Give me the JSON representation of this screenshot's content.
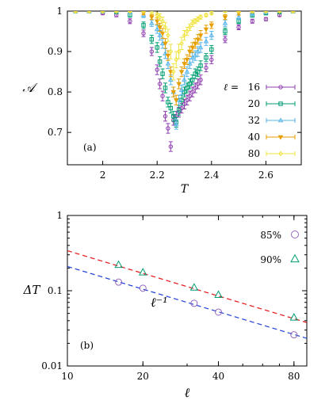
{
  "chart_data": [
    {
      "type": "scatter",
      "panel_label": "(a)",
      "xlabel": "T",
      "ylabel": "𝒜",
      "xlim": [
        1.87,
        2.73
      ],
      "ylim": [
        0.62,
        1.0
      ],
      "xticks": [
        2,
        2.2,
        2.4,
        2.6
      ],
      "xtick_labels": [
        "2",
        "2.2",
        "2.4",
        "2.6"
      ],
      "yticks": [
        0.7,
        0.8,
        0.9,
        1.0
      ],
      "ytick_labels": [
        "0.7",
        "0.8",
        "0.9",
        "1"
      ],
      "legend_title": "ℓ =",
      "legend_position": "right",
      "series": [
        {
          "name": "16",
          "color": "#8e3fb0",
          "marker": "circle",
          "x": [
            1.9,
            1.95,
            2.0,
            2.05,
            2.1,
            2.15,
            2.18,
            2.2,
            2.21,
            2.22,
            2.23,
            2.24,
            2.25,
            2.26,
            2.27,
            2.28,
            2.29,
            2.3,
            2.31,
            2.32,
            2.33,
            2.34,
            2.35,
            2.36,
            2.38,
            2.4,
            2.45,
            2.5,
            2.55,
            2.6,
            2.65,
            2.7
          ],
          "y": [
            1.0,
            1.0,
            0.995,
            0.99,
            0.975,
            0.945,
            0.9,
            0.855,
            0.82,
            0.79,
            0.74,
            0.71,
            0.665,
            0.73,
            0.74,
            0.75,
            0.76,
            0.77,
            0.78,
            0.79,
            0.8,
            0.81,
            0.82,
            0.83,
            0.86,
            0.88,
            0.93,
            0.96,
            0.975,
            0.98,
            0.99,
            1.0
          ],
          "err": [
            0.003,
            0.003,
            0.004,
            0.004,
            0.006,
            0.008,
            0.01,
            0.012,
            0.012,
            0.012,
            0.012,
            0.012,
            0.012,
            0.012,
            0.012,
            0.012,
            0.012,
            0.012,
            0.012,
            0.012,
            0.012,
            0.012,
            0.012,
            0.012,
            0.01,
            0.01,
            0.008,
            0.006,
            0.005,
            0.004,
            0.003,
            0.003
          ]
        },
        {
          "name": "20",
          "color": "#009e73",
          "marker": "square",
          "x": [
            1.9,
            1.95,
            2.0,
            2.05,
            2.1,
            2.15,
            2.18,
            2.2,
            2.21,
            2.22,
            2.23,
            2.24,
            2.25,
            2.26,
            2.27,
            2.28,
            2.29,
            2.3,
            2.31,
            2.32,
            2.33,
            2.34,
            2.35,
            2.36,
            2.38,
            2.4,
            2.45,
            2.5,
            2.55,
            2.6,
            2.65,
            2.7
          ],
          "y": [
            1.0,
            1.0,
            1.0,
            0.998,
            0.99,
            0.965,
            0.93,
            0.91,
            0.875,
            0.845,
            0.81,
            0.775,
            0.76,
            0.74,
            0.725,
            0.755,
            0.78,
            0.8,
            0.81,
            0.82,
            0.83,
            0.845,
            0.85,
            0.865,
            0.885,
            0.905,
            0.95,
            0.975,
            0.99,
            0.995,
            0.998,
            1.0
          ],
          "err": [
            0.003,
            0.003,
            0.003,
            0.004,
            0.005,
            0.008,
            0.01,
            0.012,
            0.012,
            0.012,
            0.012,
            0.012,
            0.012,
            0.012,
            0.012,
            0.012,
            0.012,
            0.012,
            0.012,
            0.012,
            0.012,
            0.012,
            0.012,
            0.012,
            0.01,
            0.01,
            0.008,
            0.006,
            0.005,
            0.004,
            0.003,
            0.003
          ]
        },
        {
          "name": "32",
          "color": "#56b4e9",
          "marker": "triangle",
          "x": [
            1.9,
            1.95,
            2.0,
            2.05,
            2.1,
            2.15,
            2.18,
            2.2,
            2.21,
            2.22,
            2.23,
            2.24,
            2.25,
            2.26,
            2.27,
            2.28,
            2.29,
            2.3,
            2.31,
            2.32,
            2.33,
            2.34,
            2.35,
            2.36,
            2.38,
            2.4,
            2.45,
            2.5,
            2.55,
            2.6,
            2.65,
            2.7
          ],
          "y": [
            1.0,
            1.0,
            1.0,
            1.0,
            0.998,
            0.99,
            0.97,
            0.955,
            0.94,
            0.92,
            0.895,
            0.87,
            0.83,
            0.8,
            0.72,
            0.78,
            0.805,
            0.83,
            0.85,
            0.87,
            0.885,
            0.89,
            0.9,
            0.91,
            0.925,
            0.94,
            0.97,
            0.985,
            0.995,
            0.998,
            1.0,
            1.0
          ],
          "err": [
            0.003,
            0.003,
            0.003,
            0.003,
            0.004,
            0.006,
            0.008,
            0.01,
            0.012,
            0.012,
            0.012,
            0.012,
            0.012,
            0.012,
            0.012,
            0.012,
            0.012,
            0.012,
            0.012,
            0.012,
            0.012,
            0.012,
            0.012,
            0.012,
            0.01,
            0.01,
            0.008,
            0.006,
            0.005,
            0.004,
            0.003,
            0.003
          ]
        },
        {
          "name": "40",
          "color": "#e69f00",
          "marker": "triangle-down",
          "x": [
            1.9,
            1.95,
            2.0,
            2.05,
            2.1,
            2.15,
            2.18,
            2.2,
            2.21,
            2.22,
            2.23,
            2.24,
            2.25,
            2.26,
            2.27,
            2.28,
            2.29,
            2.3,
            2.31,
            2.32,
            2.33,
            2.34,
            2.35,
            2.36,
            2.38,
            2.4,
            2.45,
            2.5,
            2.55,
            2.6,
            2.65,
            2.7
          ],
          "y": [
            1.0,
            1.0,
            1.0,
            1.0,
            1.0,
            0.995,
            0.985,
            0.975,
            0.96,
            0.945,
            0.92,
            0.89,
            0.85,
            0.8,
            0.78,
            0.82,
            0.85,
            0.87,
            0.88,
            0.9,
            0.91,
            0.92,
            0.93,
            0.94,
            0.955,
            0.965,
            0.985,
            0.995,
            1.0,
            1.0,
            1.0,
            1.0
          ],
          "err": [
            0.003,
            0.003,
            0.003,
            0.003,
            0.003,
            0.004,
            0.006,
            0.008,
            0.01,
            0.012,
            0.012,
            0.012,
            0.012,
            0.012,
            0.012,
            0.012,
            0.012,
            0.012,
            0.012,
            0.012,
            0.012,
            0.012,
            0.012,
            0.012,
            0.01,
            0.008,
            0.006,
            0.005,
            0.004,
            0.003,
            0.003,
            0.003
          ]
        },
        {
          "name": "80",
          "color": "#f0e442",
          "marker": "diamond",
          "x": [
            1.9,
            1.95,
            2.0,
            2.05,
            2.1,
            2.15,
            2.18,
            2.2,
            2.21,
            2.22,
            2.23,
            2.24,
            2.25,
            2.26,
            2.27,
            2.28,
            2.29,
            2.3,
            2.31,
            2.32,
            2.33,
            2.34,
            2.35,
            2.36,
            2.38,
            2.4,
            2.45,
            2.5,
            2.55,
            2.6,
            2.65,
            2.7
          ],
          "y": [
            1.0,
            1.0,
            1.0,
            1.0,
            1.0,
            1.0,
            0.998,
            0.99,
            0.985,
            0.975,
            0.96,
            0.94,
            0.9,
            0.85,
            0.88,
            0.9,
            0.92,
            0.94,
            0.95,
            0.96,
            0.97,
            0.975,
            0.98,
            0.985,
            0.99,
            0.995,
            1.0,
            1.0,
            1.0,
            1.0,
            1.0,
            1.0
          ],
          "err": [
            0.003,
            0.003,
            0.003,
            0.003,
            0.003,
            0.003,
            0.004,
            0.006,
            0.008,
            0.01,
            0.012,
            0.015,
            0.018,
            0.02,
            0.02,
            0.018,
            0.015,
            0.012,
            0.01,
            0.008,
            0.008,
            0.006,
            0.006,
            0.005,
            0.004,
            0.004,
            0.003,
            0.003,
            0.003,
            0.003,
            0.003,
            0.003
          ]
        }
      ]
    },
    {
      "type": "scatter",
      "panel_label": "(b)",
      "xlabel": "ℓ",
      "ylabel": "ΔT",
      "xscale": "log",
      "yscale": "log",
      "xlim": [
        10,
        90
      ],
      "ylim": [
        0.01,
        1
      ],
      "xticks": [
        10,
        20,
        40,
        80
      ],
      "xtick_labels": [
        "10",
        "20",
        "40",
        "80"
      ],
      "yticks": [
        0.01,
        0.1,
        1
      ],
      "ytick_labels": [
        "0.01",
        "0.1",
        "1"
      ],
      "grid": false,
      "legend_position": "top-right",
      "annotation": "ℓ⁻¹",
      "series": [
        {
          "name": "85%",
          "color": "#9467bd",
          "marker": "circle",
          "x": [
            16,
            20,
            32,
            40,
            80
          ],
          "y": [
            0.13,
            0.108,
            0.068,
            0.052,
            0.026
          ]
        },
        {
          "name": "90%",
          "color": "#009e73",
          "marker": "triangle",
          "x": [
            16,
            20,
            32,
            40,
            80
          ],
          "y": [
            0.22,
            0.175,
            0.11,
            0.088,
            0.044
          ]
        }
      ],
      "fit_lines": [
        {
          "color": "#e41a1c",
          "dash": true,
          "x": [
            10,
            90
          ],
          "y": [
            0.34,
            0.0378
          ]
        },
        {
          "color": "#1f3fd6",
          "dash": true,
          "x": [
            10,
            90
          ],
          "y": [
            0.21,
            0.0233
          ]
        }
      ]
    }
  ]
}
